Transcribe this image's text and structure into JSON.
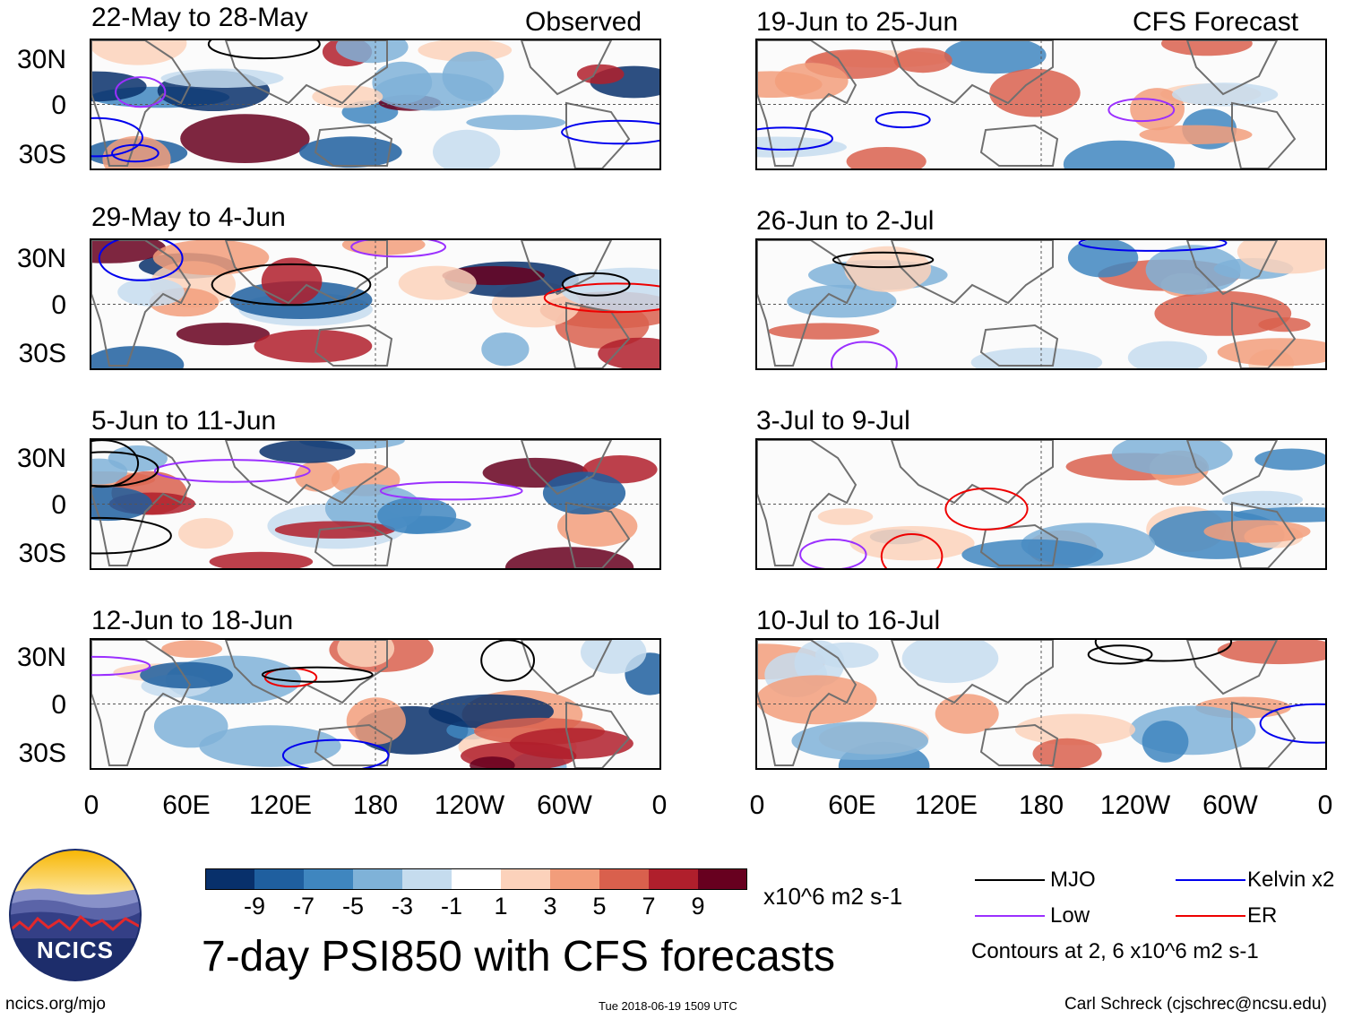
{
  "columns": {
    "left_header": "Observed",
    "right_header": "CFS Forecast"
  },
  "panels": [
    {
      "label": "22-May to 28-May",
      "kind": "observed"
    },
    {
      "label": "29-May to 4-Jun",
      "kind": "observed"
    },
    {
      "label": "5-Jun to 11-Jun",
      "kind": "observed"
    },
    {
      "label": "12-Jun to 18-Jun",
      "kind": "observed"
    },
    {
      "label": "19-Jun to 25-Jun",
      "kind": "forecast"
    },
    {
      "label": "26-Jun to 2-Jul",
      "kind": "forecast"
    },
    {
      "label": "3-Jul to 9-Jul",
      "kind": "forecast"
    },
    {
      "label": "10-Jul to 16-Jul",
      "kind": "forecast"
    }
  ],
  "lat_labels": [
    "30N",
    "0",
    "30S"
  ],
  "lon_labels": [
    "0",
    "60E",
    "120E",
    "180",
    "120W",
    "60W",
    "0"
  ],
  "colorbar": {
    "colors": [
      "#08306b",
      "#1f5f9f",
      "#3f86bf",
      "#7fb2d8",
      "#c5dcee",
      "#ffffff",
      "#fcd2bb",
      "#f29d7b",
      "#d9604d",
      "#b01f2c",
      "#67001f"
    ],
    "tick_labels": [
      "-9",
      "-7",
      "-5",
      "-3",
      "-1",
      "1",
      "3",
      "5",
      "7",
      "9"
    ],
    "units": "x10^6 m2 s-1"
  },
  "legend": {
    "items": [
      {
        "label": "MJO",
        "color": "#000000"
      },
      {
        "label": "Kelvin x2",
        "color": "#0000ee"
      },
      {
        "label": "Low",
        "color": "#9b30ff"
      },
      {
        "label": "ER",
        "color": "#ee0000"
      }
    ],
    "note": "Contours at 2, 6 x10^6 m2 s-1"
  },
  "main_title": "7-day PSI850 with CFS forecasts",
  "logo_text": "NCICS",
  "footer": {
    "left": "ncics.org/mjo",
    "center": "Tue 2018-06-19 1509 UTC",
    "right": "Carl Schreck (cjschrec@ncsu.edu)"
  }
}
